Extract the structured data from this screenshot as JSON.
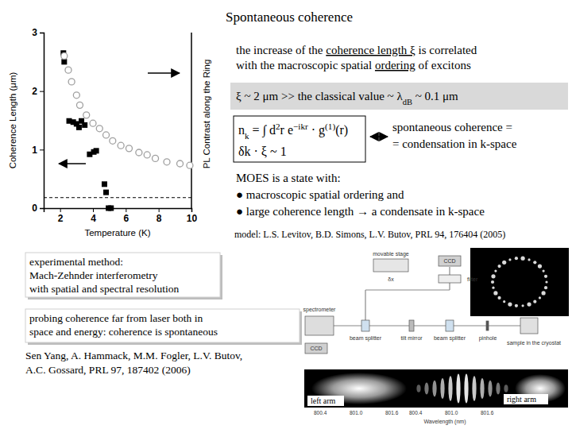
{
  "chart_data": {
    "type": "scatter",
    "x_label": "Temperature (K)",
    "y_label": "Coherence Length (μm)",
    "y2_label": "PL Contrast along the Ring",
    "xlim": [
      1,
      10
    ],
    "xticks": [
      2,
      4,
      6,
      8,
      10
    ],
    "ylim": [
      0,
      3
    ],
    "yticks": [
      0,
      1,
      2,
      3
    ],
    "y2lim": [
      0,
      3
    ],
    "reference_line": {
      "y": 0.18,
      "line_style": "dashed"
    },
    "series": [
      {
        "color": "#000000",
        "marker": "square",
        "x": [
          2.2,
          2.25,
          2.55,
          2.8,
          3.0,
          3.15,
          3.3,
          3.5,
          3.8,
          4.05,
          4.2,
          4.7,
          4.8,
          4.95,
          5.1
        ],
        "values": [
          2.65,
          2.5,
          1.49,
          1.47,
          1.44,
          1.38,
          1.49,
          1.42,
          0.92,
          0.96,
          0.98,
          0.41,
          0.27,
          0.0,
          0.0
        ]
      },
      {
        "color": "#a0a0a0",
        "marker": "open-circle",
        "axis": "y2",
        "x": [
          2.25,
          2.5,
          2.7,
          3.0,
          3.2,
          3.6,
          4.0,
          4.4,
          4.8,
          5.2,
          5.7,
          6.2,
          6.8,
          7.3,
          7.8,
          8.5,
          9.3,
          9.9
        ],
        "values": [
          2.6,
          2.36,
          2.16,
          1.93,
          1.76,
          1.59,
          1.45,
          1.36,
          1.25,
          1.15,
          1.07,
          1.02,
          0.95,
          0.91,
          0.85,
          0.79,
          0.76,
          0.73
        ]
      }
    ]
  },
  "slide": {
    "title": "Spontaneous coherence",
    "statement": [
      [
        {
          "text": "the increase of the "
        },
        {
          "text": "coherence length ξ",
          "underline": true
        },
        {
          "text": " is correlated"
        }
      ],
      [
        {
          "text": "with the macroscopic spatial "
        },
        {
          "text": "ordering",
          "underline": true
        },
        {
          "text": " of excitons"
        }
      ]
    ],
    "classical": [
      {
        "text": "ξ ~ 2 μm >> the classical value ~ λ"
      },
      {
        "text": "dB",
        "sub": true
      },
      {
        "text": " ~ 0.1 μm"
      }
    ],
    "formula": [
      [
        {
          "text": "n"
        },
        {
          "text": "k",
          "sub": true
        },
        {
          "text": " = ∫ d"
        },
        {
          "text": "2",
          "sup": true
        },
        {
          "text": "r e"
        },
        {
          "text": "−ikr",
          "sup": true
        },
        {
          "text": " · g"
        },
        {
          "text": "(1)",
          "sup": true
        },
        {
          "text": "(r)"
        }
      ],
      [
        {
          "text": "δk · ξ ~ 1"
        }
      ]
    ],
    "equivalence": [
      "spontaneous coherence =",
      "= condensation in k-space"
    ],
    "moes": [
      "MOES is a state with:",
      "● macroscopic spatial ordering and",
      "● large coherence length → a condensate in k-space"
    ],
    "model": "model: L.S. Levitov, B.D. Simons, L.V. Butov, PRL 94, 176404 (2005)",
    "method": [
      "experimental method:",
      "Mach-Zehnder interferometry",
      "with spatial and spectral resolution"
    ],
    "probing": [
      "probing coherence far from laser both in",
      "space and energy: coherence is spontaneous"
    ],
    "citation": [
      "Sen Yang, A. Hammack, M.M. Fogler, L.V. Butov,",
      "A.C. Gossard,  PRL 97, 187402 (2006)"
    ],
    "setup": {
      "stage": "movable stage",
      "delta": "δx",
      "ccd_top": "CCD",
      "filter": "filter",
      "spectrometer": "spectrometer",
      "ccd_left": "CCD",
      "beam_splitter_1": "beam splitter",
      "tilt_mirror": "tilt mirror",
      "beam_splitter_2": "beam splitter",
      "pinhole": "pinhole",
      "sample": "sample in the cryostat"
    },
    "spectra": {
      "left_arm": "left arm",
      "right_arm": "right arm",
      "wavelength_label": "Wavelength (nm)",
      "wavelength_ticks": [
        [
          "800.4",
          "801.0",
          "801.6"
        ],
        [
          "800.4",
          "801.0",
          "801.6"
        ]
      ]
    }
  }
}
